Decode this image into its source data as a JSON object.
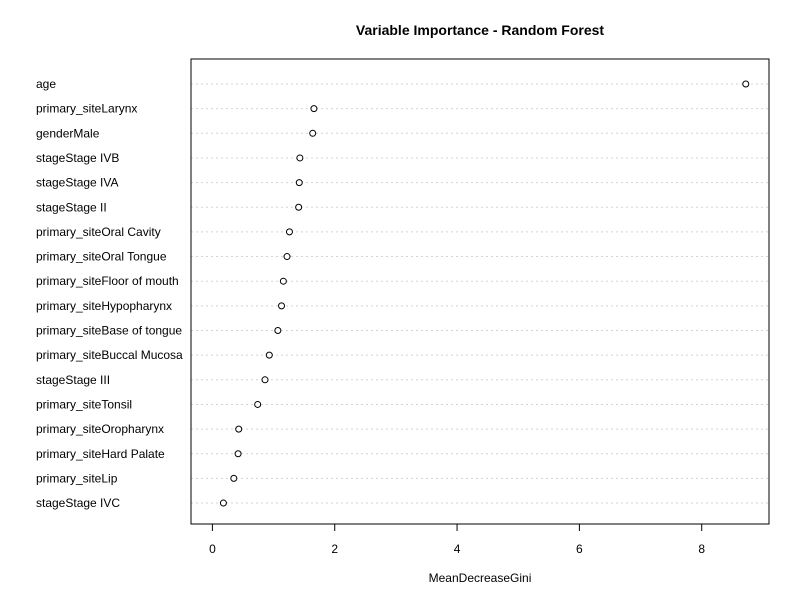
{
  "chart_data": {
    "type": "scatter",
    "title": "Variable Importance - Random Forest",
    "xlabel": "MeanDecreaseGini",
    "ylabel": "",
    "xlim": [
      -0.35,
      9.1
    ],
    "xticks": [
      0,
      2,
      4,
      6,
      8
    ],
    "grid": "dotted horizontal guide lines",
    "categories": [
      "age",
      "primary_siteLarynx",
      "genderMale",
      "stageStage IVB",
      "stageStage IVA",
      "stageStage II",
      "primary_siteOral Cavity",
      "primary_siteOral Tongue",
      "primary_siteFloor of mouth",
      "primary_siteHypopharynx",
      "primary_siteBase of tongue",
      "primary_siteBuccal Mucosa",
      "stageStage III",
      "primary_siteTonsil",
      "primary_siteOropharynx",
      "primary_siteHard Palate",
      "primary_siteLip",
      "stageStage IVC"
    ],
    "values": [
      8.72,
      1.66,
      1.64,
      1.43,
      1.42,
      1.41,
      1.26,
      1.22,
      1.16,
      1.13,
      1.07,
      0.93,
      0.86,
      0.74,
      0.43,
      0.42,
      0.35,
      0.18
    ]
  }
}
